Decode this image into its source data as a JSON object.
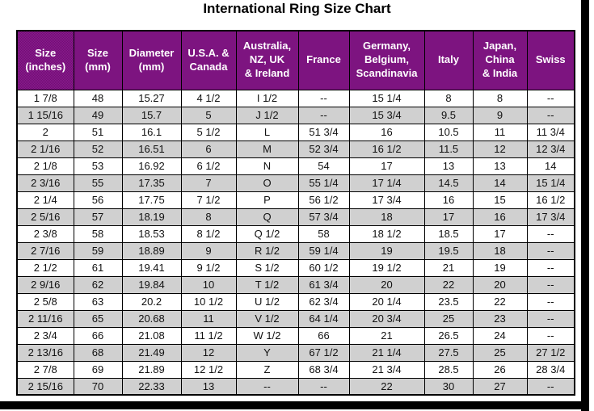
{
  "page": {
    "title": "International Ring Size Chart"
  },
  "chart_data": {
    "type": "table",
    "title": "International Ring Size Chart",
    "columns": [
      "Size\n(inches)",
      "Size\n(mm)",
      "Diameter\n(mm)",
      "U.S.A. &\nCanada",
      "Australia,\nNZ, UK\n& Ireland",
      "France",
      "Germany,\nBelgium,\nScandinavia",
      "Italy",
      "Japan,\nChina\n& India",
      "Swiss"
    ],
    "rows": [
      [
        "1 7/8",
        "48",
        "15.27",
        "4 1/2",
        "I 1/2",
        "--",
        "15 1/4",
        "8",
        "8",
        "--"
      ],
      [
        "1 15/16",
        "49",
        "15.7",
        "5",
        "J 1/2",
        "--",
        "15 3/4",
        "9.5",
        "9",
        "--"
      ],
      [
        "2",
        "51",
        "16.1",
        "5 1/2",
        "L",
        "51 3/4",
        "16",
        "10.5",
        "11",
        "11 3/4"
      ],
      [
        "2 1/16",
        "52",
        "16.51",
        "6",
        "M",
        "52 3/4",
        "16 1/2",
        "11.5",
        "12",
        "12 3/4"
      ],
      [
        "2 1/8",
        "53",
        "16.92",
        "6 1/2",
        "N",
        "54",
        "17",
        "13",
        "13",
        "14"
      ],
      [
        "2 3/16",
        "55",
        "17.35",
        "7",
        "O",
        "55 1/4",
        "17 1/4",
        "14.5",
        "14",
        "15 1/4"
      ],
      [
        "2 1/4",
        "56",
        "17.75",
        "7 1/2",
        "P",
        "56 1/2",
        "17 3/4",
        "16",
        "15",
        "16 1/2"
      ],
      [
        "2 5/16",
        "57",
        "18.19",
        "8",
        "Q",
        "57 3/4",
        "18",
        "17",
        "16",
        "17 3/4"
      ],
      [
        "2 3/8",
        "58",
        "18.53",
        "8 1/2",
        "Q 1/2",
        "58",
        "18 1/2",
        "18.5",
        "17",
        "--"
      ],
      [
        "2 7/16",
        "59",
        "18.89",
        "9",
        "R 1/2",
        "59 1/4",
        "19",
        "19.5",
        "18",
        "--"
      ],
      [
        "2 1/2",
        "61",
        "19.41",
        "9 1/2",
        "S 1/2",
        "60 1/2",
        "19 1/2",
        "21",
        "19",
        "--"
      ],
      [
        "2 9/16",
        "62",
        "19.84",
        "10",
        "T 1/2",
        "61 3/4",
        "20",
        "22",
        "20",
        "--"
      ],
      [
        "2 5/8",
        "63",
        "20.2",
        "10 1/2",
        "U 1/2",
        "62 3/4",
        "20 1/4",
        "23.5",
        "22",
        "--"
      ],
      [
        "2 11/16",
        "65",
        "20.68",
        "11",
        "V 1/2",
        "64 1/4",
        "20 3/4",
        "25",
        "23",
        "--"
      ],
      [
        "2 3/4",
        "66",
        "21.08",
        "11 1/2",
        "W 1/2",
        "66",
        "21",
        "26.5",
        "24",
        "--"
      ],
      [
        "2 13/16",
        "68",
        "21.49",
        "12",
        "Y",
        "67 1/2",
        "21 1/4",
        "27.5",
        "25",
        "27 1/2"
      ],
      [
        "2 7/8",
        "69",
        "21.89",
        "12 1/2",
        "Z",
        "68 3/4",
        "21 3/4",
        "28.5",
        "26",
        "28 3/4"
      ],
      [
        "2 15/16",
        "70",
        "22.33",
        "13",
        "--",
        "--",
        "22",
        "30",
        "27",
        "--"
      ]
    ],
    "colors": {
      "header_bg": "#8A1B8D",
      "header_text": "#FFFFFF",
      "row_bg": "#FFFFFF",
      "row_alt_bg": "#DCDCDC",
      "border": "#000000",
      "title_text": "#000000"
    },
    "layout_hints": {
      "row_striping": "alternating starting with white",
      "grid": "on"
    }
  }
}
